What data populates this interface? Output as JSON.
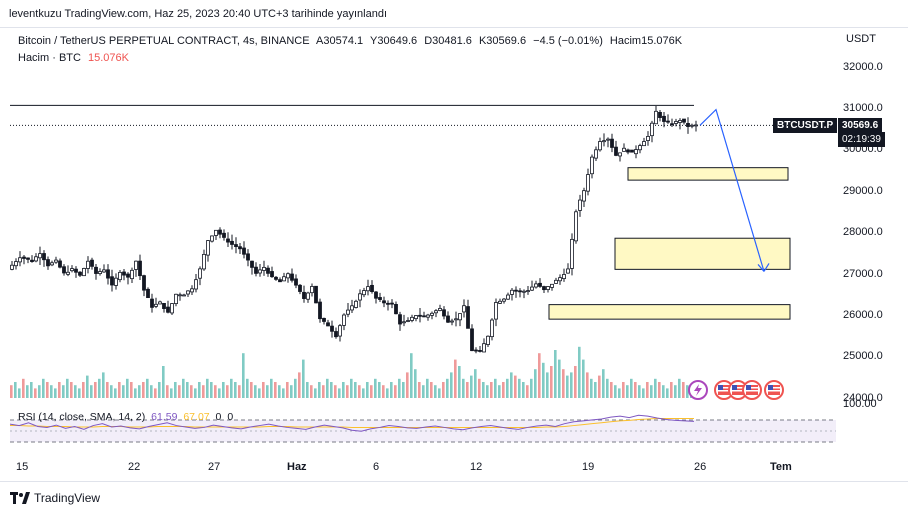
{
  "header": {
    "published_line": "leventkuzu TradingView.com, Haz 25, 2023 20:40 UTC+3 tarihinde yayınlandı"
  },
  "legend": {
    "symbol_line": "Bitcoin / TetherUS PERPETUAL CONTRACT, 4s, BINANCE",
    "open": "A30574.1",
    "high": "Y30649.6",
    "low": "D30481.6",
    "close": "K30569.6",
    "change": "−4.5 (−0.01%)",
    "volume": "Hacim15.076K",
    "volume_title": "Hacim · BTC",
    "volume_value": "15.076K"
  },
  "price_axis": {
    "currency": "USDT",
    "ticks": [
      "32000.0",
      "31000.0",
      "30000.0",
      "29000.0",
      "28000.0",
      "27000.0",
      "26000.0",
      "25000.0",
      "24000.0"
    ],
    "rsi_tick": "100.00"
  },
  "tags": {
    "symbol": "BTCUSDT.P",
    "price": "30569.6",
    "countdown": "02:19:39"
  },
  "time_axis": {
    "labels": [
      "15",
      "22",
      "27",
      "Haz",
      "6",
      "12",
      "19",
      "26",
      "Tem"
    ]
  },
  "rsi": {
    "title": "RSI (14, close, SMA, 14, 2)",
    "value1": "61.59",
    "value2": "67.07",
    "value3": "0",
    "value4": "0"
  },
  "icons": [
    "lightning-icon",
    "us-flag-icon",
    "us-flag-icon",
    "us-flag-icon",
    "us-flag-icon"
  ],
  "footer": {
    "brand": "TradingView"
  },
  "chart_data": {
    "type": "candlestick",
    "symbol": "BTCUSDT.P",
    "interval": "4s",
    "y_range": [
      23800,
      32400
    ],
    "resistance_line": 31050,
    "last_price": 30569.6,
    "zones": [
      {
        "name": "zone-1",
        "low": 29250,
        "high": 29550
      },
      {
        "name": "zone-2",
        "low": 27100,
        "high": 27850
      },
      {
        "name": "zone-3",
        "low": 25900,
        "high": 26250
      }
    ],
    "price_path": [
      [
        0,
        27100
      ],
      [
        3,
        27400
      ],
      [
        6,
        27300
      ],
      [
        8,
        27500
      ],
      [
        10,
        27200
      ],
      [
        12,
        27300
      ],
      [
        14,
        27000
      ],
      [
        16,
        27100
      ],
      [
        18,
        26950
      ],
      [
        20,
        27300
      ],
      [
        22,
        27000
      ],
      [
        24,
        27100
      ],
      [
        26,
        26700
      ],
      [
        28,
        27050
      ],
      [
        30,
        26900
      ],
      [
        32,
        27300
      ],
      [
        34,
        26600
      ],
      [
        36,
        26200
      ],
      [
        38,
        26300
      ],
      [
        40,
        26050
      ],
      [
        42,
        26500
      ],
      [
        44,
        26500
      ],
      [
        46,
        26650
      ],
      [
        48,
        27100
      ],
      [
        50,
        27800
      ],
      [
        52,
        28050
      ],
      [
        54,
        27850
      ],
      [
        56,
        27700
      ],
      [
        58,
        27600
      ],
      [
        60,
        27300
      ],
      [
        62,
        27000
      ],
      [
        64,
        27150
      ],
      [
        66,
        26900
      ],
      [
        68,
        26800
      ],
      [
        70,
        27000
      ],
      [
        72,
        26700
      ],
      [
        74,
        26400
      ],
      [
        76,
        26700
      ],
      [
        78,
        25900
      ],
      [
        80,
        25750
      ],
      [
        82,
        25500
      ],
      [
        84,
        26000
      ],
      [
        86,
        26200
      ],
      [
        88,
        26500
      ],
      [
        90,
        26700
      ],
      [
        92,
        26400
      ],
      [
        94,
        26300
      ],
      [
        96,
        26250
      ],
      [
        98,
        25800
      ],
      [
        100,
        25850
      ],
      [
        102,
        26000
      ],
      [
        104,
        25950
      ],
      [
        106,
        26050
      ],
      [
        108,
        26150
      ],
      [
        110,
        25850
      ],
      [
        112,
        25900
      ],
      [
        114,
        26200
      ],
      [
        116,
        25150
      ],
      [
        118,
        25100
      ],
      [
        120,
        25500
      ],
      [
        122,
        26300
      ],
      [
        124,
        26400
      ],
      [
        126,
        26600
      ],
      [
        128,
        26550
      ],
      [
        130,
        26600
      ],
      [
        132,
        26750
      ],
      [
        134,
        26600
      ],
      [
        136,
        26750
      ],
      [
        138,
        26900
      ],
      [
        140,
        27100
      ],
      [
        142,
        28500
      ],
      [
        144,
        29000
      ],
      [
        146,
        29800
      ],
      [
        148,
        30200
      ],
      [
        150,
        30250
      ],
      [
        152,
        29850
      ],
      [
        154,
        30000
      ],
      [
        156,
        29900
      ],
      [
        158,
        30100
      ],
      [
        160,
        30300
      ],
      [
        162,
        30900
      ],
      [
        164,
        30650
      ],
      [
        166,
        30600
      ],
      [
        168,
        30700
      ],
      [
        170,
        30550
      ],
      [
        172,
        30570
      ]
    ],
    "volume_series": [
      4,
      5,
      3,
      6,
      4,
      5,
      3,
      4,
      6,
      5,
      4,
      3,
      5,
      4,
      6,
      5,
      4,
      3,
      5,
      7,
      4,
      5,
      6,
      8,
      5,
      4,
      3,
      5,
      4,
      6,
      5,
      3,
      4,
      5,
      6,
      4,
      3,
      5,
      10,
      4,
      3,
      5,
      4,
      6,
      5,
      4,
      3,
      5,
      4,
      6,
      5,
      4,
      3,
      5,
      4,
      6,
      5,
      4,
      14,
      6,
      5,
      4,
      3,
      5,
      4,
      6,
      5,
      4,
      3,
      5,
      4,
      6,
      8,
      12,
      5,
      4,
      3,
      5,
      4,
      6,
      5,
      4,
      3,
      5,
      4,
      6,
      5,
      4,
      3,
      5,
      4,
      6,
      5,
      4,
      3,
      5,
      4,
      6,
      5,
      8,
      14,
      9,
      5,
      4,
      6,
      5,
      4,
      3,
      5,
      6,
      8,
      12,
      10,
      6,
      5,
      7,
      9,
      6,
      5,
      4,
      5,
      6,
      4,
      5,
      6,
      8,
      7,
      6,
      5,
      4,
      6,
      9,
      14,
      11,
      8,
      10,
      15,
      12,
      9,
      7,
      8,
      10,
      16,
      12,
      8,
      6,
      5,
      7,
      9,
      6,
      5,
      4,
      3,
      5,
      4,
      6,
      5,
      4,
      3,
      5,
      4,
      6,
      5,
      4,
      3,
      5,
      4,
      6,
      5,
      4,
      3,
      4
    ],
    "rsi_series": [
      55,
      52,
      58,
      50,
      48,
      53,
      46,
      50,
      44,
      52,
      56,
      49,
      51,
      47,
      45,
      50,
      54,
      58,
      52,
      49,
      46,
      48,
      53,
      50,
      47,
      45,
      49,
      52,
      55,
      51,
      48,
      46,
      44,
      49,
      53,
      50,
      47,
      42,
      40,
      45,
      48,
      52,
      50,
      47,
      46,
      49,
      51,
      48,
      45,
      43,
      47,
      50,
      52,
      49,
      46,
      44,
      48,
      51,
      53,
      50,
      56,
      60,
      62,
      64,
      66,
      70,
      72,
      69,
      74,
      72,
      68,
      65,
      63,
      62,
      61
    ],
    "rsi_sma_series": [
      52,
      52,
      51,
      51,
      50,
      50,
      50,
      49,
      49,
      49,
      50,
      50,
      50,
      49,
      49,
      49,
      50,
      50,
      50,
      50,
      49,
      49,
      49,
      49,
      49,
      49,
      49,
      49,
      50,
      50,
      50,
      49,
      49,
      49,
      49,
      49,
      49,
      48,
      48,
      48,
      48,
      48,
      48,
      48,
      48,
      48,
      48,
      48,
      48,
      48,
      48,
      48,
      48,
      48,
      48,
      48,
      48,
      48,
      49,
      49,
      50,
      52,
      54,
      56,
      58,
      60,
      62,
      63,
      65,
      66,
      67,
      67,
      67,
      67,
      67
    ],
    "projection_arrow": [
      [
        172,
        30570
      ],
      [
        176,
        30950
      ],
      [
        188,
        27050
      ]
    ]
  }
}
